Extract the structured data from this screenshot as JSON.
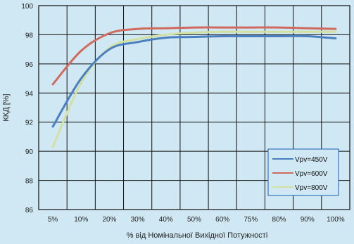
{
  "chart_data": {
    "type": "line",
    "title": "",
    "xlabel": "% від Номінальної Вихідної Потужності",
    "ylabel": "ККД [%]",
    "categories": [
      "5%",
      "10%",
      "20%",
      "30%",
      "40%",
      "50%",
      "60%",
      "75%",
      "80%",
      "90%",
      "100%"
    ],
    "ylim": [
      86,
      100
    ],
    "yticks": [
      86,
      88,
      90,
      92,
      94,
      96,
      98,
      100
    ],
    "grid": true,
    "legend_position": "bottom-right",
    "series": [
      {
        "name": "Vpv=450V",
        "color": "#4a7fc0",
        "values": [
          91.7,
          95.0,
          97.0,
          97.5,
          97.8,
          97.85,
          97.9,
          97.9,
          97.9,
          97.9,
          97.75
        ]
      },
      {
        "name": "Vpv=600V",
        "color": "#d06a5c",
        "values": [
          94.6,
          96.9,
          98.1,
          98.4,
          98.45,
          98.5,
          98.5,
          98.5,
          98.5,
          98.45,
          98.4
        ]
      },
      {
        "name": "Vpv=800V",
        "color": "#d2e0a2",
        "values": [
          90.3,
          94.7,
          97.1,
          97.7,
          98.0,
          98.15,
          98.2,
          98.2,
          98.2,
          98.2,
          98.2
        ]
      }
    ]
  }
}
